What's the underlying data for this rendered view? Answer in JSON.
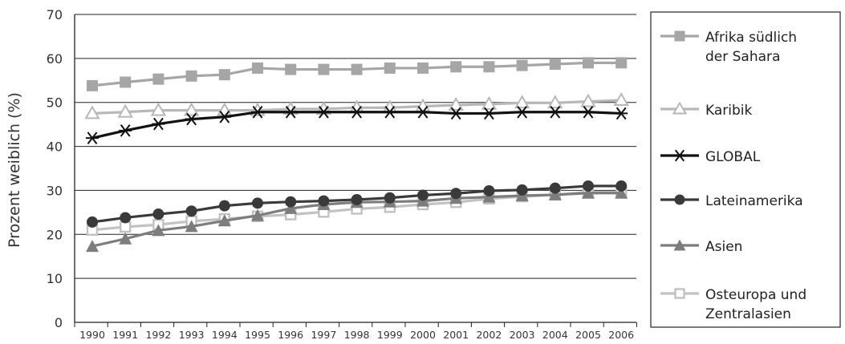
{
  "chart_data": {
    "type": "line",
    "ylabel": "Prozent weiblich (%)",
    "xlabel": "",
    "ylim": [
      0,
      70
    ],
    "yticks": [
      0,
      10,
      20,
      30,
      40,
      50,
      60,
      70
    ],
    "x": [
      "1990",
      "1991",
      "1992",
      "1993",
      "1994",
      "1995",
      "1996",
      "1997",
      "1998",
      "1999",
      "2000",
      "2001",
      "2002",
      "2003",
      "2004",
      "2005",
      "2006"
    ],
    "grid": true,
    "legend_position": "right",
    "series": [
      {
        "name": "Afrika südlich der Sahara",
        "name_lines": [
          "Afrika südlich",
          "der Sahara"
        ],
        "color": "#a6a6a6",
        "marker": "filled-square",
        "values": [
          53.8,
          54.6,
          55.3,
          56.0,
          56.3,
          57.8,
          57.5,
          57.5,
          57.5,
          57.8,
          57.8,
          58.1,
          58.1,
          58.4,
          58.7,
          59.0,
          59.0
        ]
      },
      {
        "name": "Karibik",
        "name_lines": [
          "Karibik"
        ],
        "color": "#b8b8b8",
        "marker": "open-triangle",
        "values": [
          47.5,
          47.8,
          48.2,
          48.2,
          48.2,
          48.2,
          48.5,
          48.5,
          48.8,
          48.8,
          49.1,
          49.4,
          49.6,
          49.9,
          49.9,
          50.2,
          50.5
        ]
      },
      {
        "name": "GLOBAL",
        "name_lines": [
          "GLOBAL"
        ],
        "color": "#111111",
        "marker": "asterisk",
        "values": [
          41.9,
          43.6,
          45.1,
          46.2,
          46.7,
          47.8,
          47.8,
          47.8,
          47.8,
          47.8,
          47.8,
          47.5,
          47.5,
          47.8,
          47.8,
          47.8,
          47.5
        ]
      },
      {
        "name": "Lateinamerika",
        "name_lines": [
          "Lateinamerika"
        ],
        "color": "#3a3a3a",
        "marker": "filled-circle",
        "values": [
          22.8,
          23.8,
          24.6,
          25.3,
          26.5,
          27.1,
          27.4,
          27.6,
          27.9,
          28.3,
          28.9,
          29.3,
          29.9,
          30.1,
          30.5,
          31.0,
          31.0
        ]
      },
      {
        "name": "Asien",
        "name_lines": [
          "Asien"
        ],
        "color": "#7d7d7d",
        "marker": "filled-triangle",
        "values": [
          17.3,
          19.0,
          20.9,
          21.8,
          23.1,
          24.3,
          25.9,
          26.8,
          27.3,
          27.4,
          27.6,
          28.2,
          28.5,
          28.8,
          29.0,
          29.4,
          29.4
        ]
      },
      {
        "name": "Osteuropa und Zentralasien",
        "name_lines": [
          "Osteuropa und",
          "Zentralasien"
        ],
        "color": "#c2c2c2",
        "marker": "open-square",
        "values": [
          21.0,
          21.7,
          22.2,
          23.0,
          23.5,
          24.1,
          24.5,
          25.1,
          25.8,
          26.2,
          26.8,
          27.3,
          28.1,
          28.6,
          29.0,
          29.6,
          29.6
        ]
      }
    ]
  }
}
